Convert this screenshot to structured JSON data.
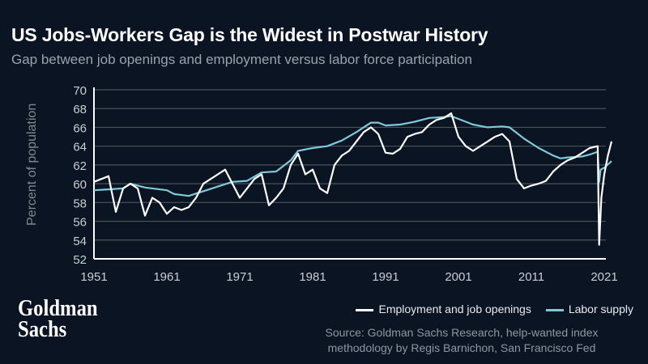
{
  "header": {
    "title": "US Jobs-Workers Gap is the Widest in Postwar History",
    "subtitle": "Gap between job openings and employment versus labor force participation"
  },
  "footer": {
    "logo": "Goldman Sachs",
    "logo_line1": "Goldman",
    "logo_line2": "Sachs",
    "source_line1": "Source: Goldman Sachs Research, help-wanted index",
    "source_line2": "methodology by Regis Barnichon, San Francisco Fed"
  },
  "colors": {
    "background": "#0a1422",
    "employment": "#ffffff",
    "labor": "#7ec8d8",
    "grid": "#4a525c"
  },
  "chart_data": {
    "type": "line",
    "title": "US Jobs-Workers Gap is the Widest in Postwar History",
    "xlabel": "",
    "ylabel": "Percent of population",
    "xlim": [
      1951,
      2022.5
    ],
    "ylim": [
      52,
      70
    ],
    "xticks": [
      1951,
      1961,
      1971,
      1981,
      1991,
      2001,
      2011,
      2021
    ],
    "yticks": [
      52,
      54,
      56,
      58,
      60,
      62,
      64,
      66,
      68,
      70
    ],
    "grid": true,
    "legend": "bottom-right",
    "series": [
      {
        "name": "Employment and job openings",
        "color": "#ffffff",
        "points": [
          [
            1951,
            60.2
          ],
          [
            1952,
            60.5
          ],
          [
            1953,
            60.8
          ],
          [
            1954,
            57.0
          ],
          [
            1955,
            59.5
          ],
          [
            1956,
            60.0
          ],
          [
            1957,
            59.5
          ],
          [
            1958,
            56.6
          ],
          [
            1959,
            58.5
          ],
          [
            1960,
            58.0
          ],
          [
            1961,
            56.8
          ],
          [
            1962,
            57.5
          ],
          [
            1963,
            57.2
          ],
          [
            1964,
            57.5
          ],
          [
            1965,
            58.5
          ],
          [
            1966,
            60.0
          ],
          [
            1967,
            60.5
          ],
          [
            1968,
            61.0
          ],
          [
            1969,
            61.5
          ],
          [
            1970,
            60.0
          ],
          [
            1971,
            58.5
          ],
          [
            1972,
            59.5
          ],
          [
            1973,
            60.5
          ],
          [
            1974,
            61.0
          ],
          [
            1975,
            57.7
          ],
          [
            1976,
            58.5
          ],
          [
            1977,
            59.5
          ],
          [
            1978,
            62.0
          ],
          [
            1979,
            63.2
          ],
          [
            1980,
            61.0
          ],
          [
            1981,
            61.5
          ],
          [
            1982,
            59.5
          ],
          [
            1983,
            59.0
          ],
          [
            1984,
            62.0
          ],
          [
            1985,
            63.0
          ],
          [
            1986,
            63.5
          ],
          [
            1987,
            64.5
          ],
          [
            1988,
            65.5
          ],
          [
            1989,
            66.0
          ],
          [
            1990,
            65.3
          ],
          [
            1991,
            63.3
          ],
          [
            1992,
            63.2
          ],
          [
            1993,
            63.7
          ],
          [
            1994,
            65.0
          ],
          [
            1995,
            65.3
          ],
          [
            1996,
            65.5
          ],
          [
            1997,
            66.3
          ],
          [
            1998,
            66.8
          ],
          [
            1999,
            67.0
          ],
          [
            2000,
            67.5
          ],
          [
            2001,
            65.0
          ],
          [
            2002,
            64.0
          ],
          [
            2003,
            63.5
          ],
          [
            2004,
            64.0
          ],
          [
            2005,
            64.5
          ],
          [
            2006,
            65.0
          ],
          [
            2007,
            65.3
          ],
          [
            2008,
            64.5
          ],
          [
            2009,
            60.5
          ],
          [
            2010,
            59.5
          ],
          [
            2011,
            59.8
          ],
          [
            2012,
            60.0
          ],
          [
            2013,
            60.3
          ],
          [
            2014,
            61.3
          ],
          [
            2015,
            62.0
          ],
          [
            2016,
            62.5
          ],
          [
            2017,
            62.8
          ],
          [
            2018,
            63.3
          ],
          [
            2019,
            63.8
          ],
          [
            2020.1,
            64.0
          ],
          [
            2020.3,
            53.5
          ],
          [
            2020.6,
            58.5
          ],
          [
            2021,
            61.0
          ],
          [
            2021.5,
            63.0
          ],
          [
            2022,
            64.5
          ]
        ]
      },
      {
        "name": "Labor supply",
        "color": "#7ec8d8",
        "points": [
          [
            1951,
            59.3
          ],
          [
            1953,
            59.4
          ],
          [
            1955,
            59.5
          ],
          [
            1956,
            60.0
          ],
          [
            1958,
            59.6
          ],
          [
            1961,
            59.3
          ],
          [
            1962,
            58.9
          ],
          [
            1964,
            58.7
          ],
          [
            1966,
            59.2
          ],
          [
            1968,
            59.7
          ],
          [
            1970,
            60.2
          ],
          [
            1972,
            60.3
          ],
          [
            1974,
            61.2
          ],
          [
            1976,
            61.3
          ],
          [
            1978,
            62.5
          ],
          [
            1979,
            63.5
          ],
          [
            1981,
            63.8
          ],
          [
            1983,
            64.0
          ],
          [
            1985,
            64.6
          ],
          [
            1987,
            65.5
          ],
          [
            1989,
            66.5
          ],
          [
            1990,
            66.5
          ],
          [
            1991,
            66.2
          ],
          [
            1993,
            66.3
          ],
          [
            1995,
            66.6
          ],
          [
            1997,
            67.0
          ],
          [
            1999,
            67.1
          ],
          [
            2000,
            67.2
          ],
          [
            2001,
            66.9
          ],
          [
            2003,
            66.3
          ],
          [
            2005,
            66.0
          ],
          [
            2007,
            66.1
          ],
          [
            2008,
            66.0
          ],
          [
            2009,
            65.4
          ],
          [
            2010,
            64.8
          ],
          [
            2012,
            63.8
          ],
          [
            2014,
            63.0
          ],
          [
            2015,
            62.7
          ],
          [
            2016,
            62.8
          ],
          [
            2018,
            62.9
          ],
          [
            2019,
            63.1
          ],
          [
            2020.1,
            63.4
          ],
          [
            2020.3,
            60.2
          ],
          [
            2020.5,
            61.5
          ],
          [
            2021,
            61.7
          ],
          [
            2022,
            62.4
          ]
        ]
      }
    ]
  }
}
